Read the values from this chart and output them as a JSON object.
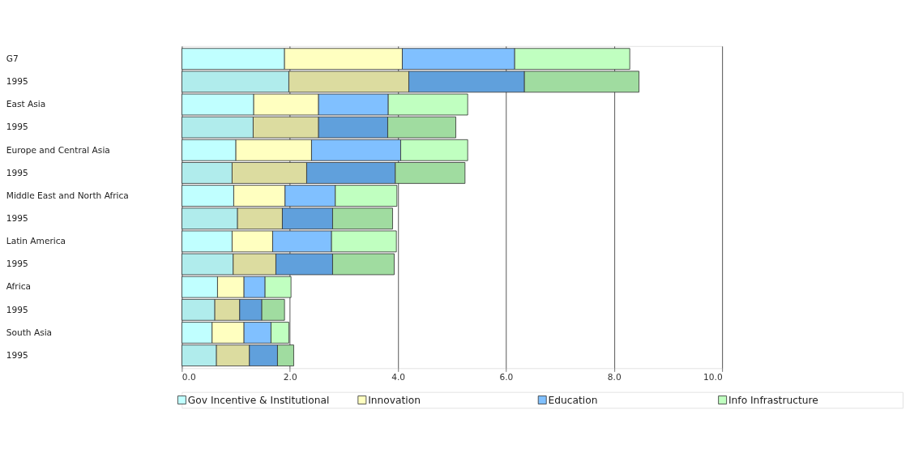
{
  "chart_data": {
    "type": "bar",
    "orientation": "horizontal",
    "stacked": true,
    "categories": [
      "G7",
      "1995",
      "East Asia",
      "1995",
      "Europe and Central Asia",
      "1995",
      "Middle East and North Africa",
      "1995",
      "Latin America",
      "1995",
      "Africa",
      "1995",
      "South Asia",
      "1995"
    ],
    "series": [
      {
        "name": "Gov Incentive & Institutional",
        "color": "#c0ffff",
        "colors": [
          "#c0ffff",
          "#b0ecec",
          "#c0ffff",
          "#b0ecec",
          "#c0ffff",
          "#b0ecec",
          "#c0ffff",
          "#b0ecec",
          "#c0ffff",
          "#b0ecec",
          "#c0ffff",
          "#b0ecec",
          "#c0ffff",
          "#b0ecec"
        ],
        "values": [
          1.9,
          1.98,
          1.33,
          1.32,
          1.0,
          0.93,
          0.96,
          1.03,
          0.93,
          0.95,
          0.66,
          0.61,
          0.56,
          0.64
        ]
      },
      {
        "name": "Innovation",
        "color": "#ffffc0",
        "colors": [
          "#ffffc0",
          "#dcdca0",
          "#ffffc0",
          "#dcdca0",
          "#ffffc0",
          "#dcdca0",
          "#ffffc0",
          "#dcdca0",
          "#ffffc0",
          "#dcdca0",
          "#ffffc0",
          "#dcdca0",
          "#ffffc0",
          "#dcdca0"
        ],
        "values": [
          2.18,
          2.22,
          1.2,
          1.21,
          1.4,
          1.38,
          0.95,
          0.83,
          0.75,
          0.79,
          0.49,
          0.46,
          0.59,
          0.61
        ]
      },
      {
        "name": "Education",
        "color": "#80c0ff",
        "colors": [
          "#80c0ff",
          "#60a0dc",
          "#80c0ff",
          "#60a0dc",
          "#80c0ff",
          "#60a0dc",
          "#80c0ff",
          "#60a0dc",
          "#80c0ff",
          "#60a0dc",
          "#80c0ff",
          "#60a0dc",
          "#80c0ff",
          "#60a0dc"
        ],
        "values": [
          2.08,
          2.14,
          1.29,
          1.28,
          1.65,
          1.64,
          0.93,
          0.93,
          1.09,
          1.05,
          0.39,
          0.41,
          0.5,
          0.52
        ]
      },
      {
        "name": "Info Infrastructure",
        "color": "#c0ffc0",
        "colors": [
          "#c0ffc0",
          "#a0dca0",
          "#c0ffc0",
          "#a0dca0",
          "#c0ffc0",
          "#a0dca0",
          "#c0ffc0",
          "#a0dca0",
          "#c0ffc0",
          "#a0dca0",
          "#c0ffc0",
          "#a0dca0",
          "#c0ffc0",
          "#a0dca0"
        ],
        "values": [
          2.13,
          2.12,
          1.47,
          1.26,
          1.24,
          1.29,
          1.14,
          1.11,
          1.2,
          1.14,
          0.48,
          0.42,
          0.33,
          0.3
        ]
      }
    ],
    "xlim": [
      0,
      10
    ],
    "xticks": [
      {
        "value": 0,
        "label": "0.0"
      },
      {
        "value": 2,
        "label": "2.0"
      },
      {
        "value": 4,
        "label": "4.0"
      },
      {
        "value": 6,
        "label": "6.0"
      },
      {
        "value": 8,
        "label": "8.0"
      },
      {
        "value": 10,
        "label": "10.0"
      }
    ],
    "grid": "x",
    "legend": "bottom"
  }
}
